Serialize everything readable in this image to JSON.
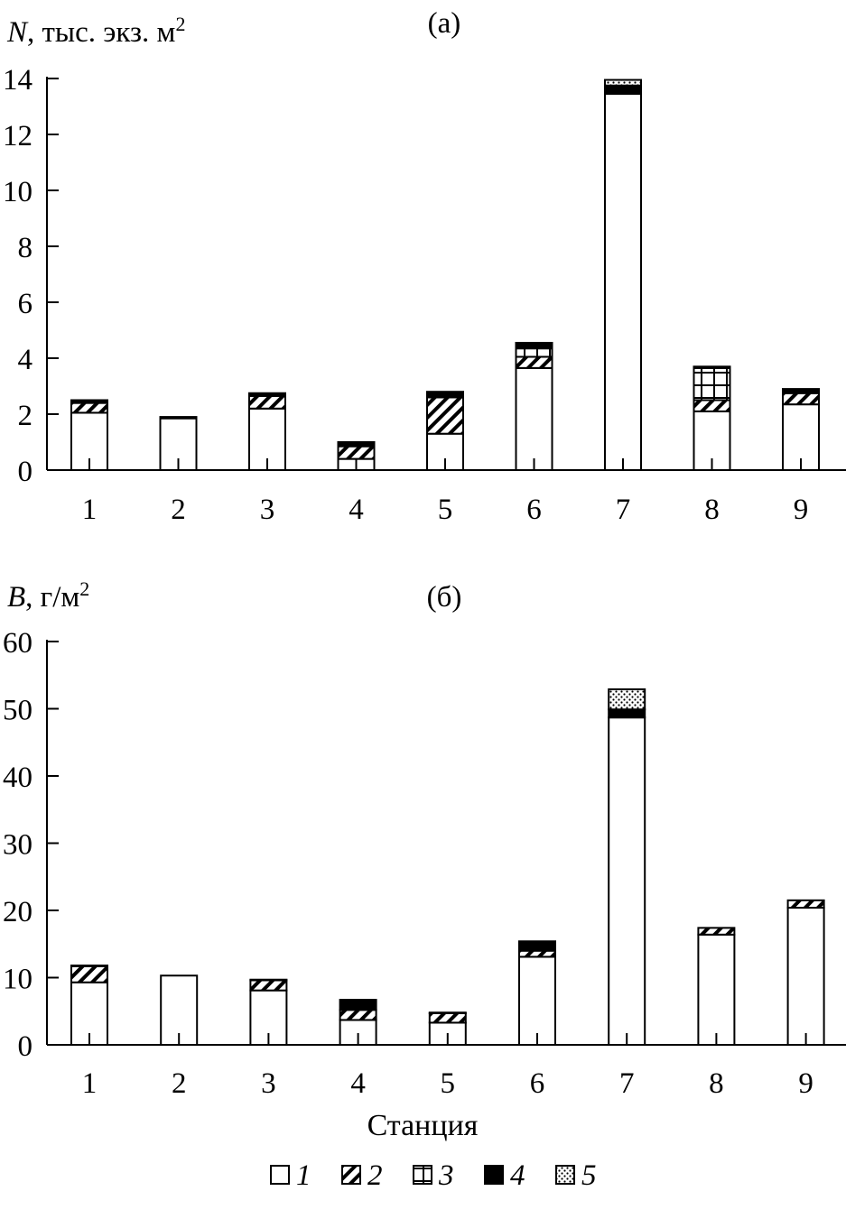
{
  "legend": {
    "items": [
      {
        "label": "1",
        "pattern": "white"
      },
      {
        "label": "2",
        "pattern": "hatch"
      },
      {
        "label": "3",
        "pattern": "grid"
      },
      {
        "label": "4",
        "pattern": "black"
      },
      {
        "label": "5",
        "pattern": "dots"
      }
    ]
  },
  "xlabel": "Станция",
  "chart_data": [
    {
      "type": "bar",
      "stacked": true,
      "panel": "(a)",
      "ylabel_symbol": "N",
      "ylabel_text": ", тыс. экз. м",
      "ylabel_sup": "2",
      "ylim": [
        0,
        14
      ],
      "yticks": [
        0,
        2,
        4,
        6,
        8,
        10,
        12,
        14
      ],
      "categories": [
        "1",
        "2",
        "3",
        "4",
        "5",
        "6",
        "7",
        "8",
        "9"
      ],
      "series": [
        {
          "name": "1",
          "pattern": "white",
          "values": [
            2.05,
            1.85,
            2.2,
            0.4,
            1.3,
            3.65,
            13.45,
            2.1,
            2.35
          ]
        },
        {
          "name": "2",
          "pattern": "hatch",
          "values": [
            0.35,
            0,
            0.45,
            0.45,
            1.3,
            0.4,
            0,
            0.4,
            0.4
          ]
        },
        {
          "name": "3",
          "pattern": "grid",
          "values": [
            0,
            0,
            0,
            0,
            0,
            0.3,
            0,
            1.15,
            0
          ]
        },
        {
          "name": "4",
          "pattern": "black",
          "values": [
            0.1,
            0.05,
            0.1,
            0.15,
            0.2,
            0.2,
            0.3,
            0.05,
            0.15
          ]
        },
        {
          "name": "5",
          "pattern": "dots",
          "values": [
            0,
            0,
            0,
            0,
            0,
            0,
            0.2,
            0,
            0
          ]
        }
      ]
    },
    {
      "type": "bar",
      "stacked": true,
      "panel": "(б)",
      "ylabel_symbol": "B",
      "ylabel_text": ", г/м",
      "ylabel_sup": "2",
      "ylim": [
        0,
        60
      ],
      "yticks": [
        0,
        10,
        20,
        30,
        40,
        50,
        60
      ],
      "categories": [
        "1",
        "2",
        "3",
        "4",
        "5",
        "6",
        "7",
        "8",
        "9"
      ],
      "series": [
        {
          "name": "1",
          "pattern": "white",
          "values": [
            9.3,
            10.3,
            8.1,
            3.7,
            3.3,
            13.1,
            48.7,
            16.4,
            20.4
          ]
        },
        {
          "name": "2",
          "pattern": "hatch",
          "values": [
            2.4,
            0,
            1.5,
            1.5,
            1.4,
            0.9,
            0,
            1.0,
            1.1
          ]
        },
        {
          "name": "3",
          "pattern": "grid",
          "values": [
            0,
            0,
            0,
            0,
            0,
            0,
            0,
            0,
            0
          ]
        },
        {
          "name": "4",
          "pattern": "black",
          "values": [
            0.1,
            0,
            0.1,
            1.5,
            0.1,
            1.4,
            1.2,
            0,
            0
          ]
        },
        {
          "name": "5",
          "pattern": "dots",
          "values": [
            0,
            0,
            0,
            0,
            0,
            0,
            3.0,
            0,
            0
          ]
        }
      ]
    }
  ]
}
